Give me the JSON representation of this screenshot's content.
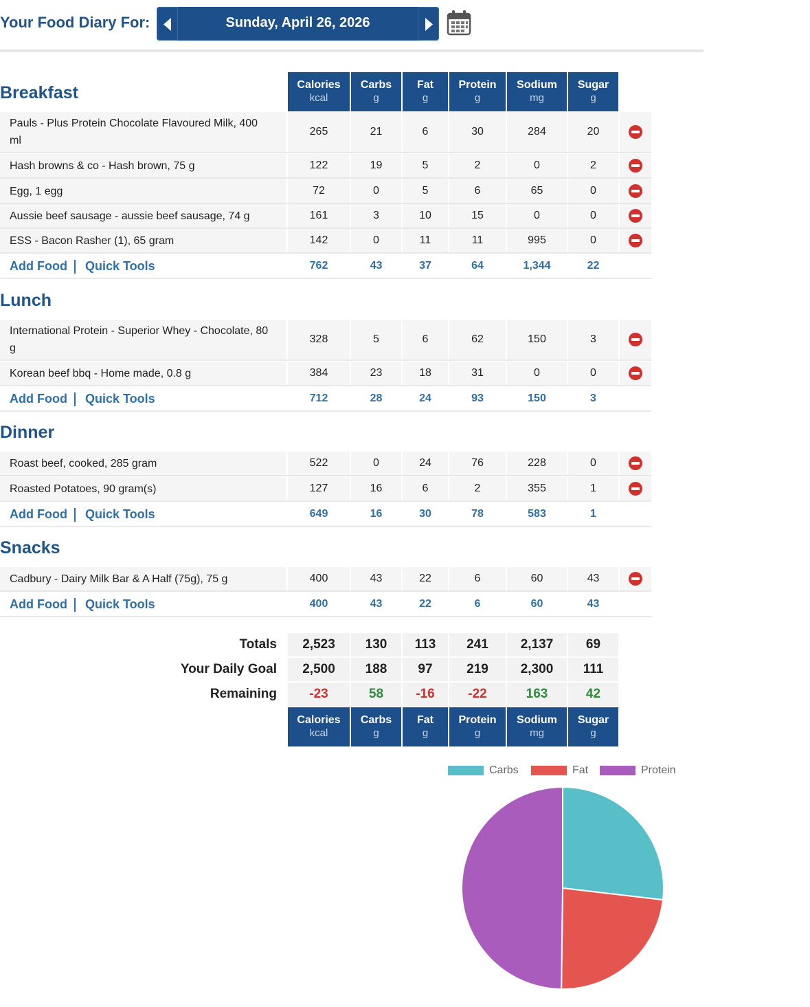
{
  "header": {
    "title": "Your Food Diary For:",
    "date": "Sunday, April 26, 2026"
  },
  "columns": [
    {
      "name": "Calories",
      "unit": "kcal"
    },
    {
      "name": "Carbs",
      "unit": "g"
    },
    {
      "name": "Fat",
      "unit": "g"
    },
    {
      "name": "Protein",
      "unit": "g"
    },
    {
      "name": "Sodium",
      "unit": "mg"
    },
    {
      "name": "Sugar",
      "unit": "g"
    }
  ],
  "links": {
    "add_food": "Add Food",
    "quick_tools": "Quick Tools"
  },
  "meals": [
    {
      "title": "Breakfast",
      "items": [
        {
          "name": "Pauls - Plus Protein Chocolate Flavoured Milk, 400 ml",
          "values": [
            "265",
            "21",
            "6",
            "30",
            "284",
            "20"
          ]
        },
        {
          "name": "Hash browns & co - Hash brown, 75 g",
          "values": [
            "122",
            "19",
            "5",
            "2",
            "0",
            "2"
          ]
        },
        {
          "name": "Egg, 1 egg",
          "values": [
            "72",
            "0",
            "5",
            "6",
            "65",
            "0"
          ]
        },
        {
          "name": "Aussie beef sausage - aussie beef sausage, 74 g",
          "values": [
            "161",
            "3",
            "10",
            "15",
            "0",
            "0"
          ]
        },
        {
          "name": "ESS - Bacon Rasher (1), 65 gram",
          "values": [
            "142",
            "0",
            "11",
            "11",
            "995",
            "0"
          ]
        }
      ],
      "totals": [
        "762",
        "43",
        "37",
        "64",
        "1,344",
        "22"
      ]
    },
    {
      "title": "Lunch",
      "items": [
        {
          "name": "International Protein - Superior Whey - Chocolate, 80 g",
          "values": [
            "328",
            "5",
            "6",
            "62",
            "150",
            "3"
          ]
        },
        {
          "name": "Korean beef bbq - Home made, 0.8 g",
          "values": [
            "384",
            "23",
            "18",
            "31",
            "0",
            "0"
          ]
        }
      ],
      "totals": [
        "712",
        "28",
        "24",
        "93",
        "150",
        "3"
      ]
    },
    {
      "title": "Dinner",
      "items": [
        {
          "name": "Roast beef, cooked, 285 gram",
          "values": [
            "522",
            "0",
            "24",
            "76",
            "228",
            "0"
          ]
        },
        {
          "name": "Roasted Potatoes, 90 gram(s)",
          "values": [
            "127",
            "16",
            "6",
            "2",
            "355",
            "1"
          ]
        }
      ],
      "totals": [
        "649",
        "16",
        "30",
        "78",
        "583",
        "1"
      ]
    },
    {
      "title": "Snacks",
      "items": [
        {
          "name": "Cadbury - Dairy Milk Bar & A Half (75g), 75 g",
          "values": [
            "400",
            "43",
            "22",
            "6",
            "60",
            "43"
          ]
        }
      ],
      "totals": [
        "400",
        "43",
        "22",
        "6",
        "60",
        "43"
      ]
    }
  ],
  "summary": {
    "totals_label": "Totals",
    "totals": [
      "2,523",
      "130",
      "113",
      "241",
      "2,137",
      "69"
    ],
    "goal_label": "Your Daily Goal",
    "goal": [
      "2,500",
      "188",
      "97",
      "219",
      "2,300",
      "111"
    ],
    "remaining_label": "Remaining",
    "remaining": [
      "-23",
      "58",
      "-16",
      "-22",
      "163",
      "42"
    ]
  },
  "colors": {
    "header_blue": "#1d4f8a",
    "title_blue": "#21558a",
    "link_blue": "#2f6fa8",
    "negative": "#d0312d",
    "positive": "#2e8b3a"
  },
  "chart_data": {
    "type": "pie",
    "categories": [
      "Carbs",
      "Fat",
      "Protein"
    ],
    "values": [
      130,
      113,
      241
    ],
    "colors": [
      "#58bec8",
      "#e5554f",
      "#aa5cbd"
    ],
    "legend_position": "top"
  }
}
